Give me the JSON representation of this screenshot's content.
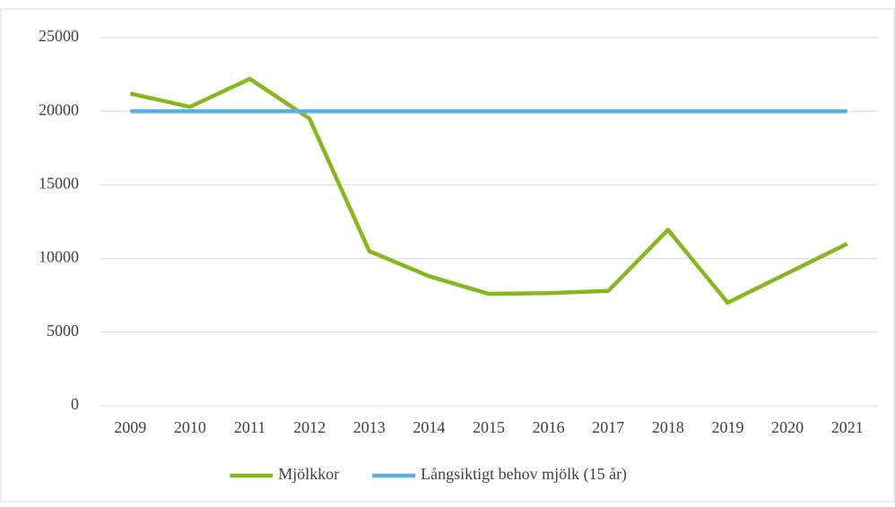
{
  "chart_data": {
    "type": "line",
    "categories": [
      "2009",
      "2010",
      "2011",
      "2012",
      "2013",
      "2014",
      "2015",
      "2016",
      "2017",
      "2018",
      "2019",
      "2020",
      "2021"
    ],
    "series": [
      {
        "name": "Mjölkkor",
        "color": "#86b81d",
        "values": [
          21200,
          20300,
          22200,
          19500,
          10500,
          8800,
          7600,
          7650,
          7800,
          11950,
          7000,
          9000,
          11000
        ]
      },
      {
        "name": "Långsiktigt behov mjölk (15 år)",
        "color": "#5aafe3",
        "values": [
          20000,
          20000,
          20000,
          20000,
          20000,
          20000,
          20000,
          20000,
          20000,
          20000,
          20000,
          20000,
          20000
        ]
      }
    ],
    "ylim": [
      0,
      25000
    ],
    "yticks": [
      0,
      5000,
      10000,
      15000,
      20000,
      25000
    ],
    "grid": true,
    "legend": "bottom"
  }
}
